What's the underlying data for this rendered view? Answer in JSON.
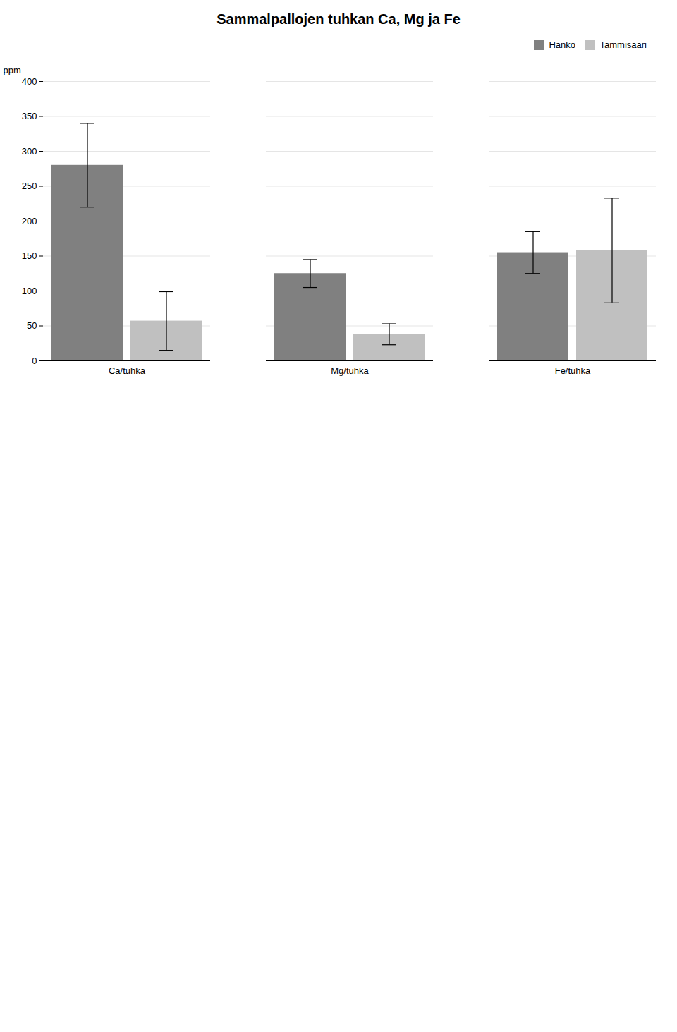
{
  "chart_data": {
    "type": "bar",
    "title": "Sammalpallojen tuhkan Ca, Mg ja Fe",
    "ylabel": "ppm",
    "categories": [
      "Ca/tuhka",
      "Mg/tuhka",
      "Fe/tuhka"
    ],
    "series": [
      {
        "name": "Hanko",
        "color": "#808080",
        "values": [
          280,
          125,
          155
        ],
        "errors": [
          60,
          20,
          30
        ]
      },
      {
        "name": "Tammisaari",
        "color": "#c0c0c0",
        "values": [
          57,
          38,
          158
        ],
        "errors": [
          42,
          15,
          75
        ]
      }
    ],
    "ylim": [
      0,
      400
    ],
    "yticks": [
      0,
      50,
      100,
      150,
      200,
      250,
      300,
      350,
      400
    ],
    "grid": true,
    "legend": "top-right"
  }
}
